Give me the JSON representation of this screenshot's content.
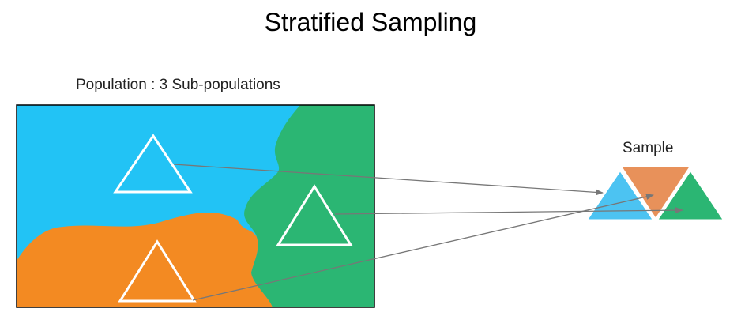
{
  "title": "Stratified Sampling",
  "population": {
    "label": "Population : 3 Sub-populations",
    "sub_populations": [
      {
        "name": "blue",
        "color": "#22C3F5"
      },
      {
        "name": "orange",
        "color": "#F38A22"
      },
      {
        "name": "green",
        "color": "#2BB673"
      }
    ]
  },
  "sample": {
    "label": "Sample",
    "colors": {
      "blue": "#4CC3F2",
      "orange": "#E8915A",
      "green": "#2BB673"
    }
  },
  "colors": {
    "arrow": "#777777",
    "outline": "#000000",
    "triangle_stroke": "#ffffff"
  }
}
